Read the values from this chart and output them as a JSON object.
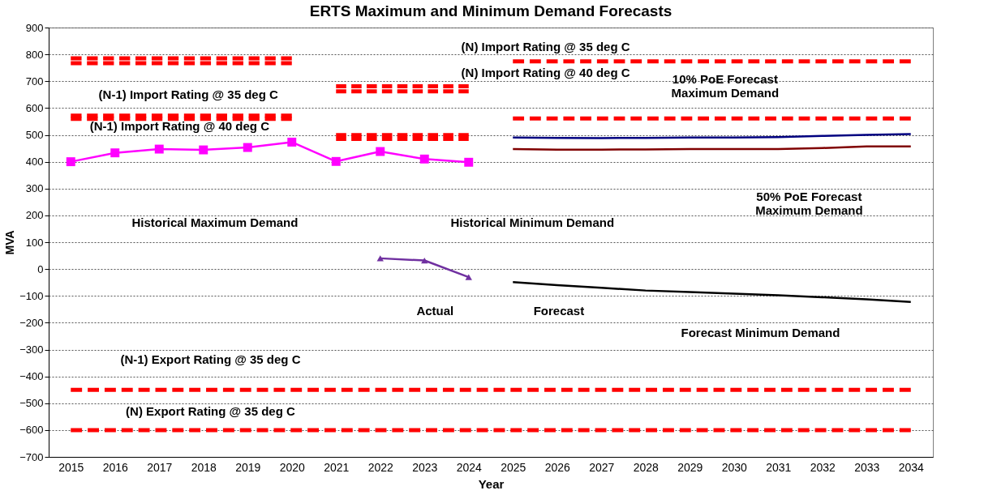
{
  "chart_data": {
    "type": "line",
    "title": "ERTS Maximum and Minimum Demand Forecasts",
    "xlabel": "Year",
    "ylabel": "MVA",
    "categories": [
      "2015",
      "2016",
      "2017",
      "2018",
      "2019",
      "2020",
      "2021",
      "2022",
      "2023",
      "2024",
      "2025",
      "2026",
      "2027",
      "2028",
      "2029",
      "2030",
      "2031",
      "2032",
      "2033",
      "2034"
    ],
    "ylim": [
      -700,
      900
    ],
    "yticks": [
      -700,
      -600,
      -500,
      -400,
      -300,
      -200,
      -100,
      0,
      100,
      200,
      300,
      400,
      500,
      600,
      700,
      800,
      900
    ],
    "grid": "y",
    "series": [
      {
        "color": "#ff00ff",
        "marker": "square",
        "line_style": "solid",
        "values": [
          400,
          433,
          447,
          444,
          453,
          473,
          401,
          438,
          410,
          398,
          null,
          null,
          null,
          null,
          null,
          null,
          null,
          null,
          null,
          null
        ]
      },
      {
        "color": "#7030a0",
        "marker": "triangle",
        "line_style": "solid",
        "values": [
          null,
          null,
          null,
          null,
          null,
          null,
          null,
          40,
          32,
          -30,
          null,
          null,
          null,
          null,
          null,
          null,
          null,
          null,
          null,
          null
        ]
      },
      {
        "color": "#000080",
        "marker": "none",
        "line_style": "solid",
        "values": [
          null,
          null,
          null,
          null,
          null,
          null,
          null,
          null,
          null,
          null,
          490,
          489,
          488,
          489,
          490,
          490,
          492,
          496,
          500,
          503
        ]
      },
      {
        "color": "#800000",
        "marker": "none",
        "line_style": "solid",
        "values": [
          null,
          null,
          null,
          null,
          null,
          null,
          null,
          null,
          null,
          null,
          447,
          445,
          445,
          446,
          447,
          447,
          447,
          451,
          457,
          457
        ]
      },
      {
        "color": "#000000",
        "marker": "none",
        "line_style": "solid",
        "values": [
          null,
          null,
          null,
          null,
          null,
          null,
          null,
          null,
          null,
          null,
          -49,
          -60,
          -70,
          -80,
          -86,
          -92,
          -98,
          -105,
          -113,
          -123
        ]
      },
      {
        "color": "#ff0000",
        "marker": "none",
        "line_style": "dashed",
        "values": [
          785,
          785,
          785,
          785,
          785,
          785,
          null,
          null,
          null,
          null,
          null,
          null,
          null,
          null,
          null,
          null,
          null,
          null,
          null,
          null
        ]
      },
      {
        "color": "#ff0000",
        "marker": "none",
        "line_style": "dashed",
        "values": [
          767,
          767,
          767,
          767,
          767,
          767,
          null,
          null,
          null,
          null,
          null,
          null,
          null,
          null,
          null,
          null,
          null,
          null,
          null,
          null
        ]
      },
      {
        "color": "#ff0000",
        "marker": "none",
        "line_style": "dashed",
        "values": [
          572,
          572,
          572,
          572,
          572,
          572,
          null,
          null,
          null,
          null,
          null,
          null,
          null,
          null,
          null,
          null,
          null,
          null,
          null,
          null
        ]
      },
      {
        "color": "#ff0000",
        "marker": "none",
        "line_style": "dashed",
        "values": [
          560,
          560,
          560,
          560,
          560,
          560,
          null,
          null,
          null,
          null,
          null,
          null,
          null,
          null,
          null,
          null,
          null,
          null,
          null,
          null
        ]
      },
      {
        "color": "#ff0000",
        "marker": "none",
        "line_style": "dashed",
        "values": [
          null,
          null,
          null,
          null,
          null,
          null,
          681,
          681,
          681,
          681,
          null,
          null,
          null,
          null,
          null,
          null,
          null,
          null,
          null,
          null
        ]
      },
      {
        "color": "#ff0000",
        "marker": "none",
        "line_style": "dashed",
        "values": [
          null,
          null,
          null,
          null,
          null,
          null,
          662,
          662,
          662,
          662,
          null,
          null,
          null,
          null,
          null,
          null,
          null,
          null,
          null,
          null
        ]
      },
      {
        "color": "#ff0000",
        "marker": "none",
        "line_style": "dashed",
        "values": [
          null,
          null,
          null,
          null,
          null,
          null,
          499,
          499,
          499,
          499,
          null,
          null,
          null,
          null,
          null,
          null,
          null,
          null,
          null,
          null
        ]
      },
      {
        "color": "#ff0000",
        "marker": "none",
        "line_style": "dashed",
        "values": [
          null,
          null,
          null,
          null,
          null,
          null,
          485,
          485,
          485,
          485,
          null,
          null,
          null,
          null,
          null,
          null,
          null,
          null,
          null,
          null
        ]
      },
      {
        "color": "#ff0000",
        "marker": "none",
        "line_style": "dashed",
        "values": [
          null,
          null,
          null,
          null,
          null,
          null,
          null,
          null,
          null,
          null,
          774,
          774,
          774,
          774,
          774,
          774,
          774,
          774,
          774,
          774
        ]
      },
      {
        "color": "#ff0000",
        "marker": "none",
        "line_style": "dashed",
        "values": [
          null,
          null,
          null,
          null,
          null,
          null,
          null,
          null,
          null,
          null,
          561,
          561,
          561,
          561,
          561,
          561,
          561,
          561,
          561,
          561
        ]
      },
      {
        "color": "#ff0000",
        "marker": "none",
        "line_style": "dashed",
        "values": [
          -450,
          -450,
          -450,
          -450,
          -450,
          -450,
          -450,
          -450,
          -450,
          -450,
          -450,
          -450,
          -450,
          -450,
          -450,
          -450,
          -450,
          -450,
          -450,
          -450
        ]
      },
      {
        "color": "#ff0000",
        "marker": "none",
        "line_style": "dashed",
        "values": [
          -600,
          -600,
          -600,
          -600,
          -600,
          -600,
          -600,
          -600,
          -600,
          -600,
          -600,
          -600,
          -600,
          -600,
          -600,
          -600,
          -600,
          -600,
          -600,
          -600
        ]
      }
    ],
    "annotations": [
      "(N-1) Import Rating @ 35 deg C",
      "(N-1) Import Rating @ 40 deg C",
      "(N) Import Rating @ 35 deg C",
      "(N) Import Rating @ 40 deg C",
      "10% PoE Forecast\nMaximum Demand",
      "50% PoE Forecast\nMaximum Demand",
      "Historical Maximum Demand",
      "Historical Minimum Demand",
      "Actual",
      "Forecast",
      "Forecast Minimum Demand",
      "(N-1) Export Rating @ 35 deg C",
      "(N) Export Rating @ 35 deg C"
    ]
  }
}
